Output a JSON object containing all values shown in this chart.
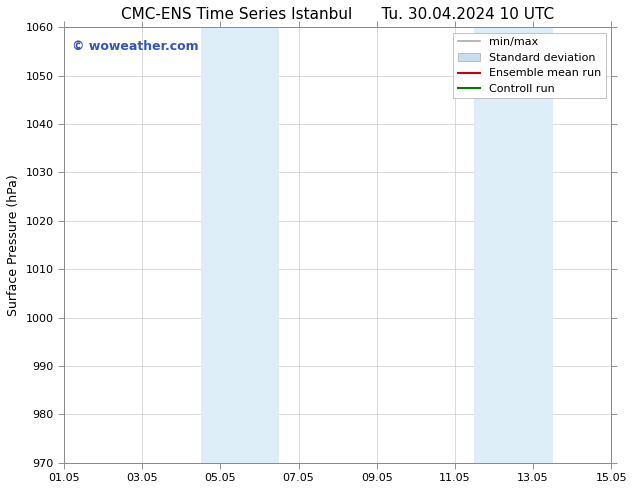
{
  "title": "CMC-ENS Time Series Istanbul",
  "title_right": "Tu. 30.04.2024 10 UTC",
  "ylabel": "Surface Pressure (hPa)",
  "ylim": [
    970,
    1060
  ],
  "yticks": [
    970,
    980,
    990,
    1000,
    1010,
    1020,
    1030,
    1040,
    1050,
    1060
  ],
  "xtick_labels": [
    "01.05",
    "03.05",
    "05.05",
    "07.05",
    "09.05",
    "11.05",
    "13.05",
    "15.05"
  ],
  "xtick_positions": [
    0,
    2,
    4,
    6,
    8,
    10,
    12,
    14
  ],
  "xlim": [
    0,
    14
  ],
  "shaded_regions": [
    {
      "xmin": 3.5,
      "xmax": 4.5,
      "color": "#ddeef8"
    },
    {
      "xmin": 4.5,
      "xmax": 5.5,
      "color": "#ddeef8"
    },
    {
      "xmin": 10.5,
      "xmax": 11.5,
      "color": "#ddeef8"
    },
    {
      "xmin": 11.5,
      "xmax": 12.5,
      "color": "#ddeef8"
    }
  ],
  "watermark_text": "© woweather.com",
  "watermark_color": "#3355bb",
  "background_color": "#ffffff",
  "plot_bg_color": "#ffffff",
  "grid_color": "#cccccc",
  "legend_entries": [
    {
      "label": "min/max",
      "color": "#aaaaaa",
      "lw": 1.2,
      "style": "solid",
      "type": "line"
    },
    {
      "label": "Standard deviation",
      "color": "#c8dff0",
      "lw": 8,
      "style": "solid",
      "type": "bar"
    },
    {
      "label": "Ensemble mean run",
      "color": "#cc0000",
      "lw": 1.5,
      "style": "solid",
      "type": "line"
    },
    {
      "label": "Controll run",
      "color": "#007700",
      "lw": 1.5,
      "style": "solid",
      "type": "line"
    }
  ],
  "title_fontsize": 11,
  "ylabel_fontsize": 9,
  "tick_fontsize": 8,
  "legend_fontsize": 8,
  "watermark_fontsize": 9
}
